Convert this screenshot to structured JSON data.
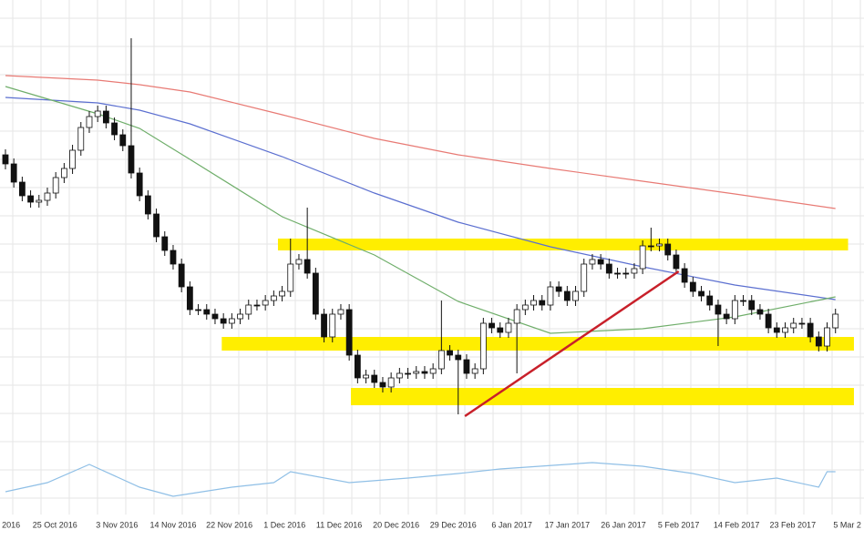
{
  "chart_data": {
    "type": "candlestick",
    "xlim": [
      -0.65,
      102.4
    ],
    "ylim": [
      0,
      593
    ],
    "grid": true,
    "xticks": [
      {
        "value": 0.4,
        "label": "t 2016"
      },
      {
        "value": 5.9,
        "label": "25 Oct 2016"
      },
      {
        "value": 13.3,
        "label": "3 Nov 2016"
      },
      {
        "value": 20,
        "label": "14 Nov 2016"
      },
      {
        "value": 26.7,
        "label": "22 Nov 2016"
      },
      {
        "value": 33.3,
        "label": "1 Dec 2016"
      },
      {
        "value": 39.8,
        "label": "11 Dec 2016"
      },
      {
        "value": 46.6,
        "label": "20 Dec 2016"
      },
      {
        "value": 53.4,
        "label": "29 Dec 2016"
      },
      {
        "value": 60.4,
        "label": "6 Jan 2017"
      },
      {
        "value": 67,
        "label": "17 Jan 2017"
      },
      {
        "value": 73.7,
        "label": "26 Jan 2017"
      },
      {
        "value": 80.3,
        "label": "5 Feb 2017"
      },
      {
        "value": 87.2,
        "label": "14 Feb 2017"
      },
      {
        "value": 93.9,
        "label": "23 Feb 2017"
      },
      {
        "value": 100.4,
        "label": "5 Mar 2"
      }
    ],
    "up_color": "#ffffff",
    "down_color": "#111111",
    "open": [
      423,
      413,
      393,
      378,
      371,
      373,
      381,
      398,
      408,
      428,
      453,
      465,
      471,
      458,
      445,
      433,
      403,
      378,
      358,
      333,
      318,
      303,
      278,
      253,
      253,
      248,
      243,
      238,
      243,
      248,
      258,
      258,
      263,
      268,
      273,
      303,
      308,
      293,
      248,
      223,
      248,
      253,
      203,
      178,
      181,
      173,
      168,
      178,
      183,
      183,
      185,
      183,
      188,
      208,
      203,
      198,
      183,
      188,
      238,
      233,
      228,
      238,
      253,
      258,
      263,
      258,
      278,
      273,
      263,
      273,
      303,
      308,
      303,
      293,
      293,
      293,
      298,
      323,
      323,
      325,
      313,
      298,
      283,
      273,
      268,
      258,
      248,
      243,
      263,
      263,
      253,
      248,
      233,
      228,
      233,
      238,
      238,
      223,
      213,
      233
    ],
    "high": [
      429,
      419,
      399,
      384,
      379,
      387,
      404,
      414,
      434,
      459,
      471,
      477,
      477,
      464,
      451,
      551,
      409,
      384,
      364,
      339,
      324,
      309,
      284,
      259,
      259,
      254,
      249,
      249,
      254,
      264,
      264,
      269,
      274,
      279,
      331,
      314,
      365,
      299,
      254,
      254,
      259,
      259,
      209,
      187,
      187,
      179,
      184,
      189,
      189,
      191,
      191,
      194,
      263,
      214,
      209,
      204,
      194,
      244,
      244,
      239,
      244,
      259,
      264,
      269,
      269,
      284,
      284,
      279,
      279,
      309,
      314,
      314,
      309,
      299,
      299,
      304,
      329,
      343,
      331,
      331,
      319,
      304,
      289,
      279,
      274,
      264,
      254,
      269,
      269,
      269,
      259,
      254,
      239,
      239,
      244,
      244,
      244,
      229,
      239,
      254
    ],
    "low": [
      407,
      387,
      372,
      365,
      365,
      367,
      375,
      392,
      402,
      422,
      447,
      459,
      452,
      439,
      427,
      397,
      372,
      352,
      327,
      312,
      297,
      272,
      247,
      247,
      242,
      237,
      232,
      232,
      237,
      242,
      252,
      252,
      257,
      262,
      267,
      297,
      287,
      242,
      217,
      217,
      242,
      197,
      172,
      172,
      167,
      162,
      162,
      172,
      177,
      177,
      177,
      177,
      182,
      197,
      138,
      177,
      177,
      182,
      227,
      222,
      222,
      183,
      247,
      252,
      252,
      252,
      267,
      257,
      257,
      267,
      297,
      297,
      287,
      287,
      287,
      287,
      292,
      317,
      317,
      307,
      292,
      277,
      267,
      262,
      252,
      213,
      237,
      237,
      257,
      247,
      242,
      227,
      222,
      222,
      227,
      232,
      217,
      207,
      207,
      227
    ],
    "close": [
      413,
      393,
      378,
      371,
      373,
      381,
      398,
      408,
      428,
      453,
      465,
      471,
      458,
      445,
      433,
      403,
      378,
      358,
      333,
      318,
      303,
      278,
      253,
      253,
      248,
      243,
      238,
      243,
      248,
      258,
      258,
      263,
      268,
      273,
      303,
      308,
      293,
      248,
      223,
      248,
      253,
      203,
      178,
      181,
      173,
      168,
      178,
      183,
      183,
      185,
      183,
      188,
      208,
      203,
      198,
      183,
      188,
      238,
      233,
      228,
      238,
      253,
      258,
      263,
      258,
      278,
      273,
      263,
      273,
      303,
      308,
      303,
      293,
      293,
      293,
      298,
      323,
      323,
      325,
      313,
      298,
      283,
      273,
      268,
      258,
      248,
      243,
      263,
      263,
      253,
      248,
      233,
      228,
      233,
      238,
      238,
      223,
      213,
      233,
      248
    ],
    "series": [
      {
        "color": "#e87a74",
        "x": [
          0,
          11,
          16,
          22,
          33,
          44,
          54,
          65,
          76,
          87,
          99
        ],
        "values": [
          510,
          505,
          500,
          492,
          467,
          441,
          423,
          408,
          394,
          380,
          364
        ]
      },
      {
        "color": "#5b6fd0",
        "x": [
          0,
          11,
          16,
          22,
          33,
          44,
          54,
          65,
          76,
          87,
          99
        ],
        "values": [
          486,
          480,
          472,
          457,
          421,
          381,
          349,
          322,
          300,
          280,
          264
        ]
      },
      {
        "color": "#6fae6a",
        "x": [
          0,
          11,
          16,
          22,
          33,
          44,
          54,
          65,
          76,
          87,
          99
        ],
        "values": [
          498,
          468,
          452,
          418,
          355,
          313,
          262,
          227,
          232,
          245,
          267
        ]
      },
      {
        "color": "#8fbfe6",
        "x": [
          0,
          5,
          10,
          16,
          20,
          27,
          32,
          34,
          41,
          48,
          54,
          59,
          70,
          76,
          82,
          87,
          92,
          97,
          98,
          99
        ],
        "values": [
          53,
          63,
          83,
          58,
          48,
          58,
          63,
          75,
          63,
          68,
          73,
          78,
          85,
          81,
          73,
          63,
          68,
          58,
          75,
          75
        ]
      }
    ],
    "zones": [
      {
        "color": "#ffee00",
        "from": 32.5,
        "to": 100.5,
        "low": 318,
        "high": 331
      },
      {
        "color": "#ffee00",
        "from": 25.8,
        "to": 101.2,
        "low": 208,
        "high": 223
      },
      {
        "color": "#ffee00",
        "from": 41.2,
        "to": 101.2,
        "low": 148,
        "high": 167
      }
    ],
    "trendline": {
      "color": "#c8202a",
      "x": [
        54.8,
        80.3
      ],
      "values": [
        136,
        295
      ]
    }
  }
}
